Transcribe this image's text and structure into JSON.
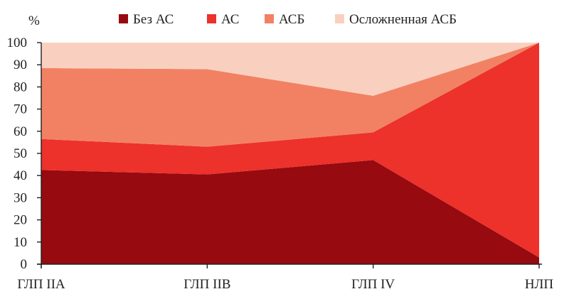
{
  "chart_data": {
    "type": "area",
    "stacked": true,
    "categories": [
      "ГЛП IIA",
      "ГЛП IIB",
      "ГЛП IV",
      "НЛП"
    ],
    "ylabel": "%",
    "ylim": [
      0,
      100
    ],
    "yticks": [
      0,
      10,
      20,
      30,
      40,
      50,
      60,
      70,
      80,
      90,
      100
    ],
    "legend_position": "top",
    "series": [
      {
        "name": "Без АС",
        "color": "#960a10",
        "values": [
          42.5,
          40.5,
          47,
          3
        ]
      },
      {
        "name": "АС",
        "color": "#ed312b",
        "values": [
          14,
          12.5,
          12.5,
          97
        ]
      },
      {
        "name": "АСБ",
        "color": "#f28163",
        "values": [
          32,
          35,
          16.5,
          0
        ]
      },
      {
        "name": "Осложненная АСБ",
        "color": "#f9d0bf",
        "values": [
          11.5,
          12,
          24,
          0
        ]
      }
    ]
  }
}
